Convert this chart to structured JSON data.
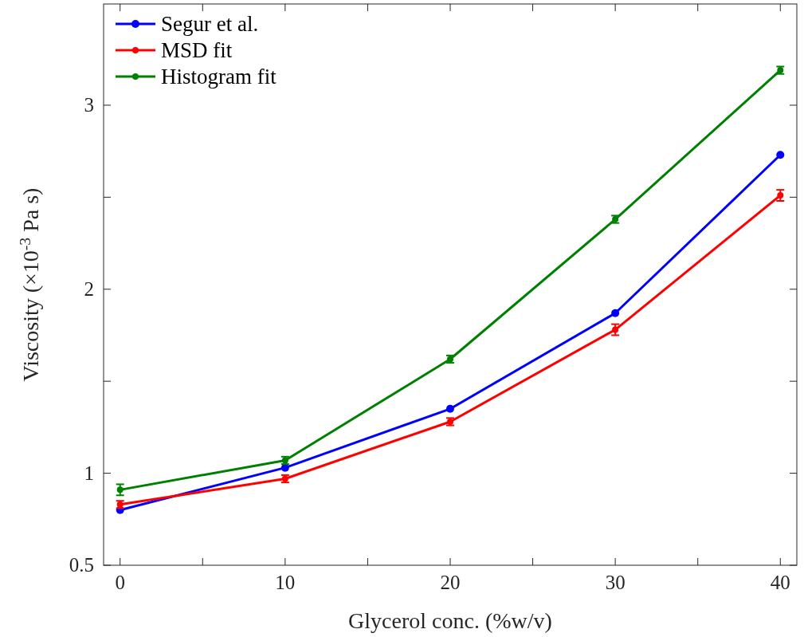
{
  "chart_data": {
    "type": "line",
    "xlabel": "Glycerol conc. (%w/v)",
    "ylabel": "Viscosity (×10$^{-3}$ Pa s)",
    "x": [
      0,
      10,
      20,
      30,
      40
    ],
    "series": [
      {
        "name": "Segur et al.",
        "color": "#0000ff",
        "values": [
          0.8,
          1.03,
          1.35,
          1.87,
          2.73
        ]
      },
      {
        "name": "MSD fit",
        "color": "#ff0000",
        "values": [
          0.83,
          0.97,
          1.28,
          1.78,
          2.51
        ],
        "errors": [
          0.02,
          0.02,
          0.02,
          0.03,
          0.03
        ]
      },
      {
        "name": "Histogram fit",
        "color": "#008000",
        "values": [
          0.91,
          1.07,
          1.62,
          2.38,
          3.19
        ],
        "errors": [
          0.03,
          0.02,
          0.02,
          0.02,
          0.02
        ]
      }
    ],
    "xlim": [
      -1,
      41
    ],
    "xticks": [
      0,
      {
        "value": 5,
        "label": null
      },
      10,
      {
        "value": 15,
        "label": null
      },
      20,
      {
        "value": 25,
        "label": null
      },
      30,
      {
        "value": 35,
        "label": null
      },
      40
    ],
    "ylim": [
      0.5,
      3.55
    ],
    "yticks": [
      0.5,
      1,
      {
        "value": 1.5,
        "label": null
      },
      2,
      {
        "value": 2.5,
        "label": null
      },
      3
    ],
    "marker": "circle",
    "line_style": "solid",
    "grid": false,
    "legend": "top left"
  }
}
